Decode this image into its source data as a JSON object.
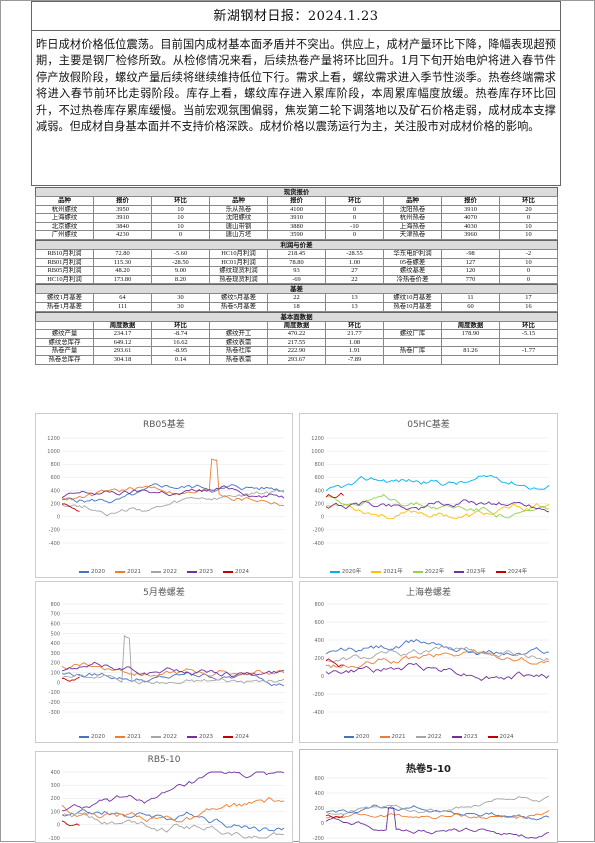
{
  "title": "新湖钢材日报：2024.1.23",
  "summary": "昨日成材价格低位震荡。目前国内成材基本面矛盾并不突出。供应上，成材产量环比下降，降幅表现超预期，主要是钢厂检修所致。从检修情况来看，后续热卷产量将环比回升。1月下旬开始电炉将进入春节件停产放假阶段，螺纹产量后续将继续维持低位下行。需求上看，螺纹需求进入季节性淡季。热卷终端需求将进入春节前环比走弱阶段。库存上看，螺纹库存进入累库阶段，本周累库幅度放缓。热卷库存环比回升，不过热卷库存累库缓慢。当前宏观氛围偏弱，焦炭第二轮下调落地以及矿石价格走弱，成材成本支撑减弱。但成材自身基本面并不支持价格深跌。成材价格以震荡运行为主，关注股市对成材价格的影响。",
  "spot": {
    "section": "现货报价",
    "headers": [
      "品种",
      "报价",
      "环比",
      "品种",
      "报价",
      "环比",
      "品种",
      "报价",
      "环比"
    ],
    "rows": [
      [
        "杭州螺纹",
        "3950",
        "10",
        "乐从热卷",
        "4100",
        "0",
        "沈阳热卷",
        "3910",
        "20"
      ],
      [
        "上海螺纹",
        "3910",
        "10",
        "沈阳螺纹",
        "3910",
        "0",
        "杭州热卷",
        "4070",
        "0"
      ],
      [
        "北京螺纹",
        "3840",
        "10",
        "唐山带钢",
        "3880",
        "-10",
        "上海热卷",
        "4030",
        "10"
      ],
      [
        "广州螺纹",
        "4230",
        "0",
        "唐山方坯",
        "3590",
        "0",
        "天津热卷",
        "3960",
        "10"
      ]
    ]
  },
  "profit": {
    "section": "利润与价差",
    "rows": [
      [
        "RB10月利润",
        "72.80",
        "-5.60",
        "HC10月利润",
        "218.45",
        "-28.55",
        "华东电炉利润",
        "-98",
        "-2"
      ],
      [
        "RB01月利润",
        "115.30",
        "-28.50",
        "HC01月利润",
        "78.80",
        "1.00",
        "05卷螺差",
        "127",
        "10"
      ],
      [
        "RB05月利润",
        "48.20",
        "9.00",
        "螺纹现货利润",
        "93",
        "27",
        "螺纹基差",
        "120",
        "0"
      ],
      [
        "HC10月利润",
        "173.80",
        "8.20",
        "热卷现货利润",
        "-69",
        "22",
        "冷热卷价差",
        "770",
        "0"
      ]
    ]
  },
  "basis": {
    "section": "基差",
    "rows": [
      [
        "螺纹1月基差",
        "64",
        "30",
        "螺纹5月基差",
        "22",
        "13",
        "螺纹10月基差",
        "11",
        "17"
      ],
      [
        "热卷1月基差",
        "111",
        "30",
        "热卷5月基差",
        "18",
        "13",
        "热卷10月基差",
        "60",
        "16"
      ]
    ]
  },
  "fundamentals": {
    "section": "基本面数据",
    "headers": [
      "",
      "周度数据",
      "环比",
      "",
      "周度数据",
      "环比",
      "",
      "周度数据",
      "环比"
    ],
    "rows": [
      [
        "螺纹产量",
        "234.17",
        "-8.74",
        "螺纹开工",
        "470.22",
        "21.77",
        "螺纹厂库",
        "178.90",
        "-5.15"
      ],
      [
        "螺纹总库存",
        "649.12",
        "16.62",
        "螺纹表需",
        "217.55",
        "1.08",
        "",
        "",
        ""
      ],
      [
        "热卷产量",
        "293.61",
        "-8.95",
        "热卷社库",
        "222.90",
        "1.91",
        "热卷厂库",
        "81.26",
        "-1.77"
      ],
      [
        "热卷总库存",
        "304.18",
        "0.14",
        "热卷表需",
        "293.67",
        "-7.89",
        "",
        "",
        ""
      ]
    ]
  },
  "charts": [
    {
      "title": "RB05基差",
      "yticks": [
        "1200",
        "1000",
        "800",
        "600",
        "400",
        "200",
        "0",
        "-200",
        "-400"
      ],
      "legend": [
        "2020",
        "2021",
        "2022",
        "2023",
        "2024"
      ]
    },
    {
      "title": "05HC基差",
      "yticks": [
        "1200",
        "1000",
        "800",
        "600",
        "400",
        "200",
        "0",
        "-200",
        "-400"
      ],
      "legend": [
        "2020年",
        "2021年",
        "2022年",
        "2023年",
        "2024年"
      ]
    },
    {
      "title": "5月卷螺差",
      "yticks": [
        "800",
        "700",
        "600",
        "500",
        "400",
        "300",
        "200",
        "100",
        "0",
        "-100",
        "-200",
        "-300"
      ],
      "legend": [
        "2020",
        "2021",
        "2022",
        "2023",
        "2024"
      ]
    },
    {
      "title": "上海卷螺差",
      "yticks": [
        "800",
        "600",
        "400",
        "200",
        "0",
        "-200",
        "-400"
      ],
      "legend": [
        "2020",
        "2021",
        "2022",
        "2023",
        "2024"
      ]
    },
    {
      "title": "RB5-10",
      "yticks": [
        "400",
        "300",
        "200",
        "100",
        "0",
        "-100"
      ],
      "legend": []
    },
    {
      "title": "热卷5-10",
      "yticks": [
        "600",
        "400",
        "200",
        "0",
        "-200"
      ],
      "legend": []
    }
  ],
  "colors": {
    "s2020": "#4472c4",
    "s2021": "#ed7d31",
    "s2022": "#a5a5a5",
    "s2023": "#7030a0",
    "s2024": "#c00000",
    "hc2020": "#00b0f0",
    "hc2021": "#ffc000",
    "hc2022": "#92d050"
  }
}
